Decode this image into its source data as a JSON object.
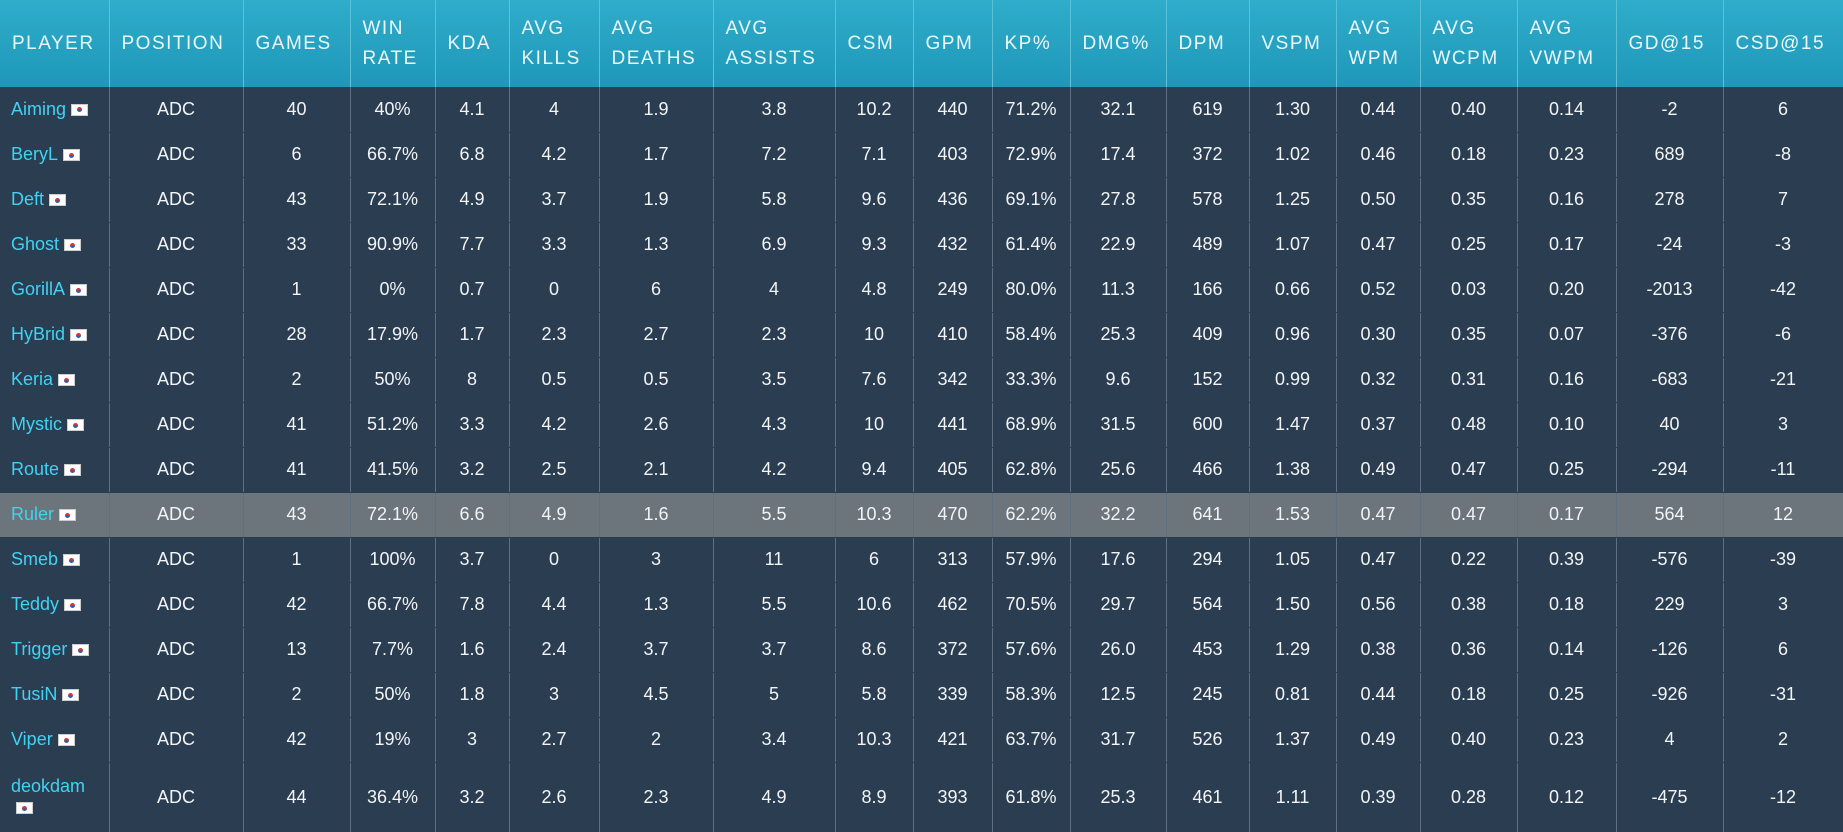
{
  "table": {
    "headers": [
      "PLAYER",
      "POSITION",
      "GAMES",
      "WIN RATE",
      "KDA",
      "AVG KILLS",
      "AVG DEATHS",
      "AVG ASSISTS",
      "CSM",
      "GPM",
      "KP%",
      "DMG%",
      "DPM",
      "VSPM",
      "AVG WPM",
      "AVG WCPM",
      "AVG VWPM",
      "GD@15",
      "CSD@15"
    ],
    "rows": [
      [
        "Aiming",
        "ADC",
        "40",
        "40%",
        "4.1",
        "4",
        "1.9",
        "3.8",
        "10.2",
        "440",
        "71.2%",
        "32.1",
        "619",
        "1.30",
        "0.44",
        "0.40",
        "0.14",
        "-2",
        "6"
      ],
      [
        "BeryL",
        "ADC",
        "6",
        "66.7%",
        "6.8",
        "4.2",
        "1.7",
        "7.2",
        "7.1",
        "403",
        "72.9%",
        "17.4",
        "372",
        "1.02",
        "0.46",
        "0.18",
        "0.23",
        "689",
        "-8"
      ],
      [
        "Deft",
        "ADC",
        "43",
        "72.1%",
        "4.9",
        "3.7",
        "1.9",
        "5.8",
        "9.6",
        "436",
        "69.1%",
        "27.8",
        "578",
        "1.25",
        "0.50",
        "0.35",
        "0.16",
        "278",
        "7"
      ],
      [
        "Ghost",
        "ADC",
        "33",
        "90.9%",
        "7.7",
        "3.3",
        "1.3",
        "6.9",
        "9.3",
        "432",
        "61.4%",
        "22.9",
        "489",
        "1.07",
        "0.47",
        "0.25",
        "0.17",
        "-24",
        "-3"
      ],
      [
        "GorillA",
        "ADC",
        "1",
        "0%",
        "0.7",
        "0",
        "6",
        "4",
        "4.8",
        "249",
        "80.0%",
        "11.3",
        "166",
        "0.66",
        "0.52",
        "0.03",
        "0.20",
        "-2013",
        "-42"
      ],
      [
        "HyBrid",
        "ADC",
        "28",
        "17.9%",
        "1.7",
        "2.3",
        "2.7",
        "2.3",
        "10",
        "410",
        "58.4%",
        "25.3",
        "409",
        "0.96",
        "0.30",
        "0.35",
        "0.07",
        "-376",
        "-6"
      ],
      [
        "Keria",
        "ADC",
        "2",
        "50%",
        "8",
        "0.5",
        "0.5",
        "3.5",
        "7.6",
        "342",
        "33.3%",
        "9.6",
        "152",
        "0.99",
        "0.32",
        "0.31",
        "0.16",
        "-683",
        "-21"
      ],
      [
        "Mystic",
        "ADC",
        "41",
        "51.2%",
        "3.3",
        "4.2",
        "2.6",
        "4.3",
        "10",
        "441",
        "68.9%",
        "31.5",
        "600",
        "1.47",
        "0.37",
        "0.48",
        "0.10",
        "40",
        "3"
      ],
      [
        "Route",
        "ADC",
        "41",
        "41.5%",
        "3.2",
        "2.5",
        "2.1",
        "4.2",
        "9.4",
        "405",
        "62.8%",
        "25.6",
        "466",
        "1.38",
        "0.49",
        "0.47",
        "0.25",
        "-294",
        "-11"
      ],
      [
        "Ruler",
        "ADC",
        "43",
        "72.1%",
        "6.6",
        "4.9",
        "1.6",
        "5.5",
        "10.3",
        "470",
        "62.2%",
        "32.2",
        "641",
        "1.53",
        "0.47",
        "0.47",
        "0.17",
        "564",
        "12"
      ],
      [
        "Smeb",
        "ADC",
        "1",
        "100%",
        "3.7",
        "0",
        "3",
        "11",
        "6",
        "313",
        "57.9%",
        "17.6",
        "294",
        "1.05",
        "0.47",
        "0.22",
        "0.39",
        "-576",
        "-39"
      ],
      [
        "Teddy",
        "ADC",
        "42",
        "66.7%",
        "7.8",
        "4.4",
        "1.3",
        "5.5",
        "10.6",
        "462",
        "70.5%",
        "29.7",
        "564",
        "1.50",
        "0.56",
        "0.38",
        "0.18",
        "229",
        "3"
      ],
      [
        "Trigger",
        "ADC",
        "13",
        "7.7%",
        "1.6",
        "2.4",
        "3.7",
        "3.7",
        "8.6",
        "372",
        "57.6%",
        "26.0",
        "453",
        "1.29",
        "0.38",
        "0.36",
        "0.14",
        "-126",
        "6"
      ],
      [
        "TusiN",
        "ADC",
        "2",
        "50%",
        "1.8",
        "3",
        "4.5",
        "5",
        "5.8",
        "339",
        "58.3%",
        "12.5",
        "245",
        "0.81",
        "0.44",
        "0.18",
        "0.25",
        "-926",
        "-31"
      ],
      [
        "Viper",
        "ADC",
        "42",
        "19%",
        "3",
        "2.7",
        "2",
        "3.4",
        "10.3",
        "421",
        "63.7%",
        "31.7",
        "526",
        "1.37",
        "0.49",
        "0.40",
        "0.23",
        "4",
        "2"
      ],
      [
        "deokdam",
        "ADC",
        "44",
        "36.4%",
        "3.2",
        "2.6",
        "2.3",
        "4.9",
        "8.9",
        "393",
        "61.8%",
        "25.3",
        "461",
        "1.11",
        "0.39",
        "0.28",
        "0.12",
        "-475",
        "-12"
      ]
    ]
  }
}
